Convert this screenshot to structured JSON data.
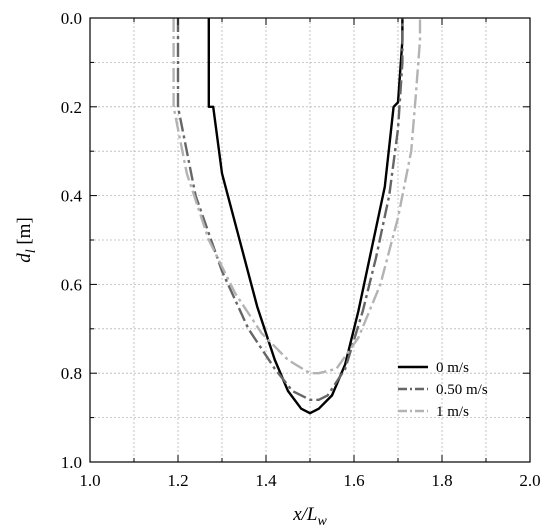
{
  "chart_data": {
    "type": "line",
    "xlabel": {
      "main": "x/L",
      "sub": "w"
    },
    "ylabel": {
      "main": "d",
      "sub": "l",
      "unit": " [m]"
    },
    "xlim": [
      1.0,
      2.0
    ],
    "ylim": [
      0.0,
      1.0
    ],
    "y_inverted": true,
    "grid": true,
    "legend_position": "right-lower",
    "x_ticks": [
      "1.0",
      "1.2",
      "1.4",
      "1.6",
      "1.8",
      "2.0"
    ],
    "y_ticks": [
      "0.0",
      "0.2",
      "0.4",
      "0.6",
      "0.8",
      "1.0"
    ],
    "series": [
      {
        "name": "0 m/s",
        "color": "#000000",
        "style": "solid",
        "x": [
          1.27,
          1.27,
          1.28,
          1.3,
          1.34,
          1.38,
          1.42,
          1.45,
          1.48,
          1.5,
          1.52,
          1.55,
          1.58,
          1.61,
          1.64,
          1.67,
          1.69,
          1.7,
          1.71,
          1.71
        ],
        "y": [
          0.0,
          0.2,
          0.2,
          0.35,
          0.5,
          0.65,
          0.77,
          0.84,
          0.88,
          0.89,
          0.88,
          0.85,
          0.78,
          0.66,
          0.52,
          0.38,
          0.2,
          0.19,
          0.05,
          0.0
        ]
      },
      {
        "name": "0.50 m/s",
        "color": "#666666",
        "style": "dashdot",
        "x": [
          1.2,
          1.2,
          1.2,
          1.24,
          1.3,
          1.36,
          1.42,
          1.46,
          1.5,
          1.52,
          1.54,
          1.58,
          1.62,
          1.65,
          1.68,
          1.7,
          1.71,
          1.71
        ],
        "y": [
          0.0,
          0.1,
          0.2,
          0.4,
          0.57,
          0.7,
          0.79,
          0.84,
          0.86,
          0.86,
          0.85,
          0.79,
          0.66,
          0.54,
          0.4,
          0.25,
          0.1,
          0.0
        ]
      },
      {
        "name": "1 m/s",
        "color": "#b3b3b3",
        "style": "dashdot",
        "x": [
          1.19,
          1.19,
          1.19,
          1.22,
          1.27,
          1.33,
          1.39,
          1.45,
          1.5,
          1.52,
          1.56,
          1.61,
          1.66,
          1.7,
          1.73,
          1.74,
          1.75,
          1.75
        ],
        "y": [
          0.0,
          0.1,
          0.2,
          0.35,
          0.5,
          0.62,
          0.71,
          0.77,
          0.8,
          0.8,
          0.79,
          0.72,
          0.6,
          0.45,
          0.3,
          0.18,
          0.05,
          0.0
        ]
      }
    ]
  }
}
